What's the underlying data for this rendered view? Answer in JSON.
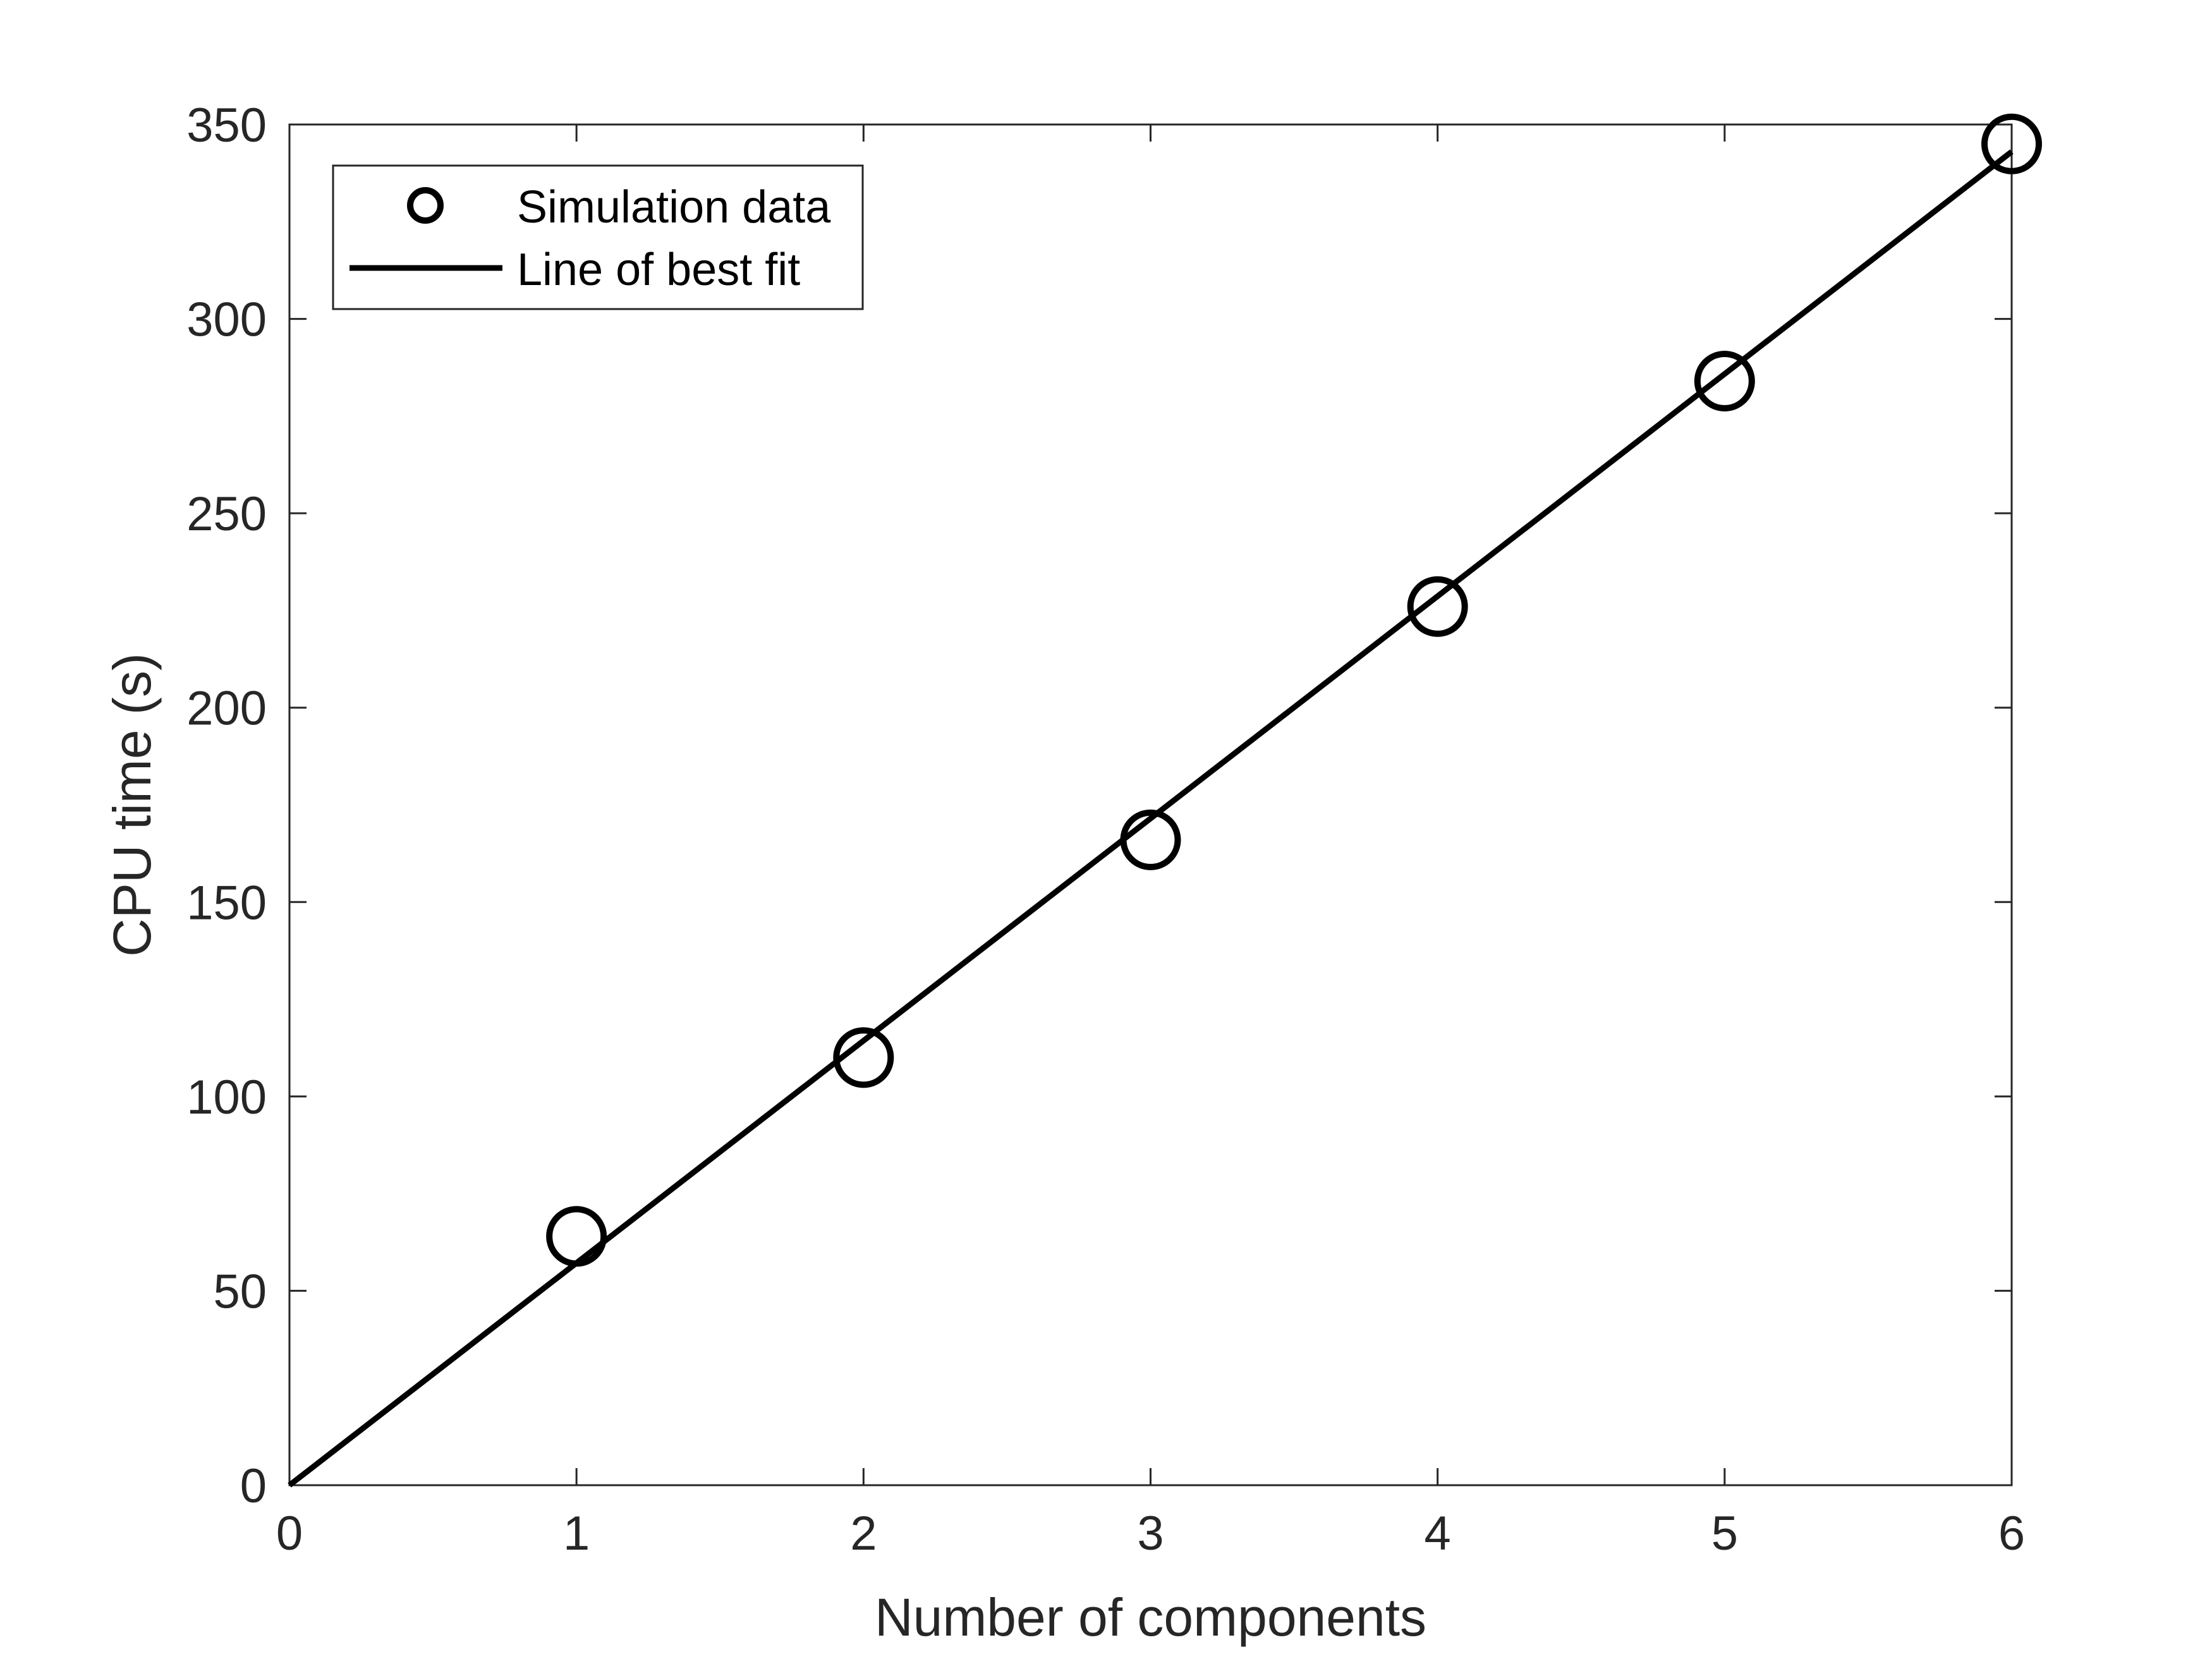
{
  "chart_data": {
    "type": "scatter",
    "title": "",
    "xlabel": "Number of components",
    "ylabel": "CPU time (s)",
    "xlim": [
      0,
      6
    ],
    "ylim": [
      0,
      350
    ],
    "xticks": [
      0,
      1,
      2,
      3,
      4,
      5,
      6
    ],
    "yticks": [
      0,
      50,
      100,
      150,
      200,
      250,
      300,
      350
    ],
    "grid": false,
    "legend_position": "top-left",
    "series": [
      {
        "name": "Simulation data",
        "kind": "scatter",
        "marker": "circle-open",
        "color": "#000000",
        "x": [
          1,
          2,
          3,
          4,
          5,
          6
        ],
        "y": [
          64,
          110,
          166,
          226,
          284,
          345
        ]
      },
      {
        "name": "Line of best fit",
        "kind": "line",
        "color": "#000000",
        "x": [
          0,
          6
        ],
        "y": [
          0,
          343
        ]
      }
    ]
  }
}
